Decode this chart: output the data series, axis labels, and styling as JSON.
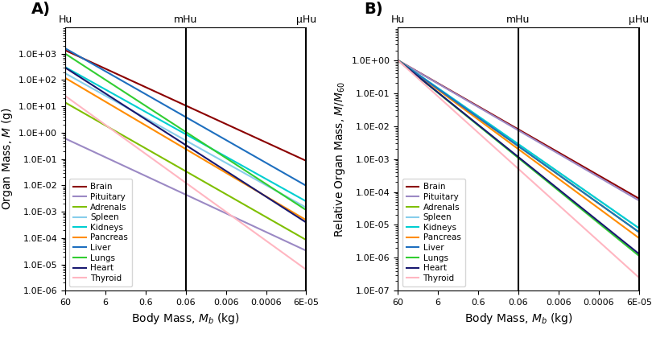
{
  "organs": [
    "Brain",
    "Pituitary",
    "Adrenals",
    "Spleen",
    "Kidneys",
    "Pancreas",
    "Liver",
    "Lungs",
    "Heart",
    "Thyroid"
  ],
  "colors": [
    "#8B0000",
    "#9B89C4",
    "#7FBF00",
    "#87CEEB",
    "#00CED1",
    "#FF8C00",
    "#1E6FBF",
    "#32CD32",
    "#191970",
    "#FFB6C1"
  ],
  "exponents": [
    0.7,
    0.71,
    0.87,
    0.85,
    0.85,
    0.9,
    0.87,
    0.99,
    0.98,
    1.1
  ],
  "prefactors_at_60": [
    1350,
    0.6,
    14,
    180,
    310,
    120,
    1600,
    1000,
    295,
    25
  ],
  "Mb_human": 60,
  "Mb_mHu": 0.06,
  "Mb_muHu": 6e-05,
  "Mb_min": 6e-05,
  "Mb_max": 60,
  "panel_A_ylim": [
    1e-06,
    10000.0
  ],
  "panel_B_ylim": [
    1e-07,
    10.0
  ],
  "xlabel": "Body Mass, $M_b$ (kg)",
  "ylabel_A": "Organ Mass, $M$ (g)",
  "ylabel_B": "Relative Organ Mass, $M/M_{60}$",
  "label_Hu": "Hu",
  "label_mHu": "mHu",
  "label_muHu": "μHu",
  "xtick_labels": [
    "60",
    "6",
    "0.6",
    "0.06",
    "0.006",
    "0.0006",
    "6E-05"
  ],
  "xtick_values": [
    60,
    6,
    0.6,
    0.06,
    0.006,
    0.0006,
    6e-05
  ],
  "yticks_A": [
    1e-06,
    1e-05,
    0.0001,
    0.001,
    0.01,
    0.1,
    1.0,
    10.0,
    100.0,
    1000.0
  ],
  "yticks_B": [
    1e-07,
    1e-06,
    1e-05,
    0.0001,
    0.001,
    0.01,
    0.1,
    1.0
  ]
}
